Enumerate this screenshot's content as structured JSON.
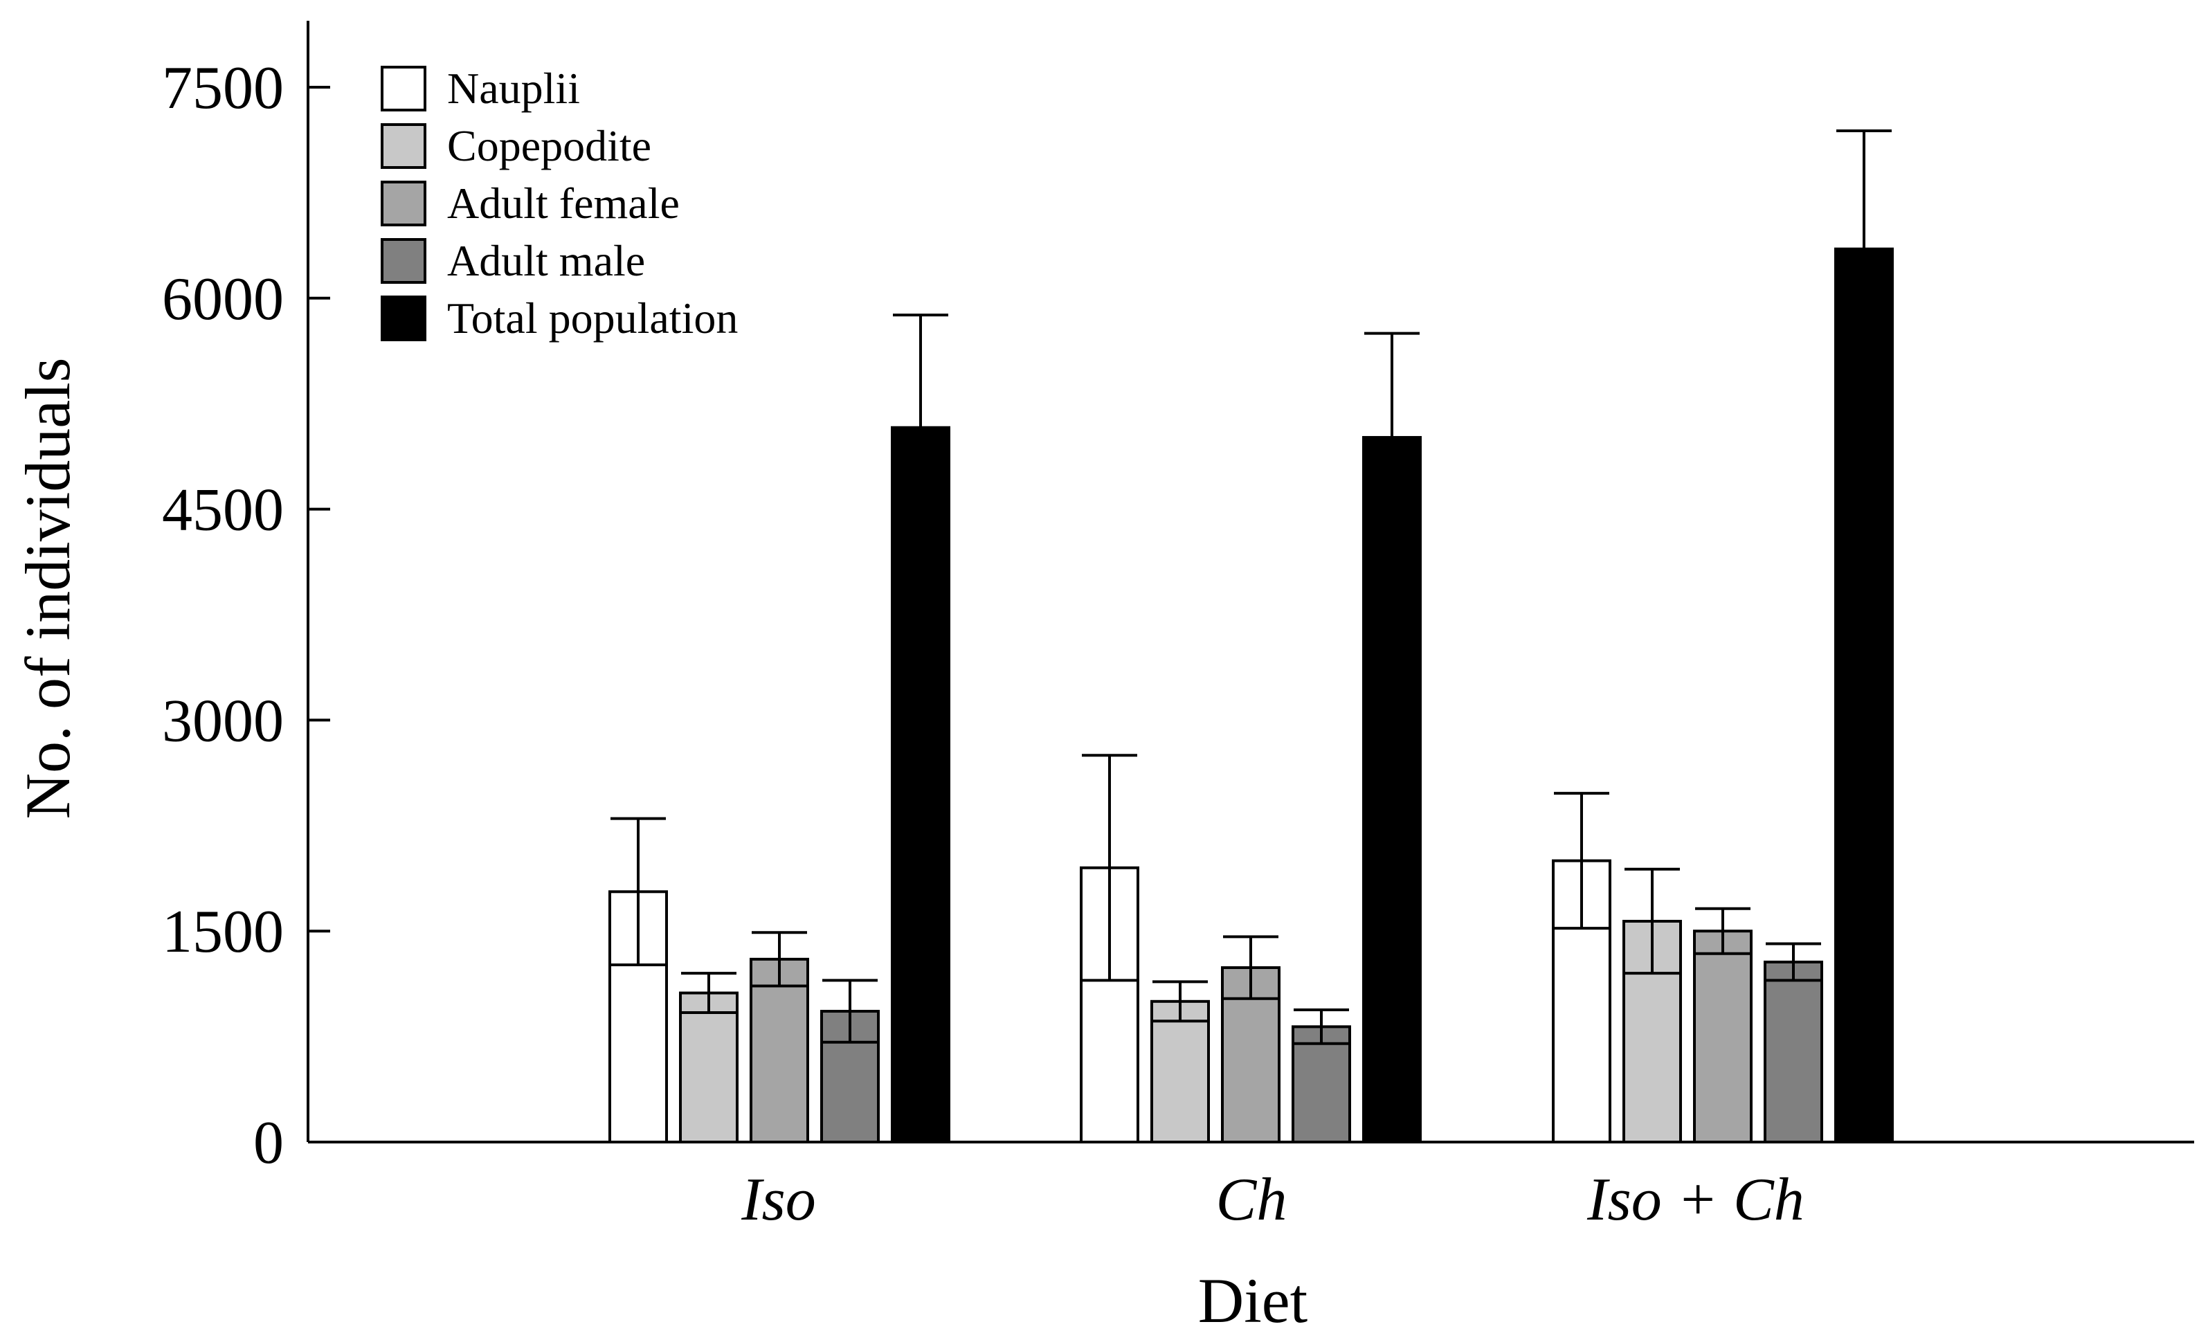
{
  "chart_data": {
    "type": "bar",
    "title": "",
    "xlabel": "Diet",
    "ylabel": "No. of individuals",
    "ylim": [
      0,
      8000
    ],
    "yticks": [
      0,
      1500,
      3000,
      4500,
      6000,
      7500
    ],
    "ytick_labels": [
      "0",
      "1500",
      "3000",
      "4500",
      "6000",
      "7500"
    ],
    "grid": false,
    "legend_position": "top-left",
    "categories": [
      "Iso",
      "Ch",
      "Iso + Ch"
    ],
    "series": [
      {
        "name": "Nauplii",
        "color": "#ffffff",
        "values": [
          1780,
          1950,
          2000
        ],
        "errors": [
          520,
          800,
          480
        ]
      },
      {
        "name": "Copepodite",
        "color": "#c8c8c8",
        "values": [
          1060,
          1000,
          1570
        ],
        "errors": [
          140,
          140,
          370
        ]
      },
      {
        "name": "Adult female",
        "color": "#a5a5a5",
        "values": [
          1300,
          1240,
          1500
        ],
        "errors": [
          190,
          220,
          160
        ]
      },
      {
        "name": "Adult male",
        "color": "#808080",
        "values": [
          930,
          820,
          1280
        ],
        "errors": [
          220,
          120,
          130
        ]
      },
      {
        "name": "Total population",
        "color": "#000000",
        "values": [
          5080,
          5010,
          6350
        ],
        "errors": [
          800,
          740,
          840
        ]
      }
    ]
  }
}
